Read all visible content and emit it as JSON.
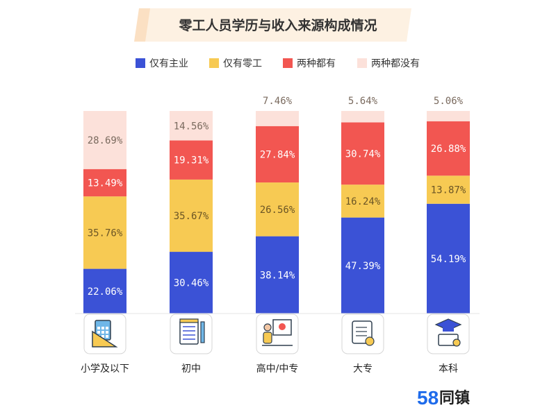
{
  "chart_data": {
    "type": "bar",
    "stacked": true,
    "normalized": true,
    "title": "零工人员学历与收入来源构成情况",
    "categories": [
      "小学及以下",
      "初中",
      "高中/中专",
      "大专",
      "本科"
    ],
    "series": [
      {
        "name": "仅有主业",
        "color": "#3B52D6",
        "values": [
          22.06,
          30.46,
          38.14,
          47.39,
          54.19
        ]
      },
      {
        "name": "仅有零工",
        "color": "#F7CA53",
        "values": [
          35.76,
          35.67,
          26.56,
          16.24,
          13.87
        ]
      },
      {
        "name": "两种都有",
        "color": "#F25651",
        "values": [
          13.49,
          19.31,
          27.84,
          30.74,
          26.88
        ]
      },
      {
        "name": "两种都没有",
        "color": "#FCE1DA",
        "values": [
          28.69,
          14.56,
          7.46,
          5.64,
          5.06
        ]
      }
    ],
    "value_format": "{v}%",
    "legend_position": "top",
    "grid": false,
    "icons": [
      "calculator-ruler-icon",
      "notepad-pen-icon",
      "presentation-board-icon",
      "diploma-scroll-icon",
      "graduation-cap-certificate-icon"
    ]
  },
  "brand": {
    "number": "58",
    "text": "同镇",
    "number_color": "#1E6BEB"
  }
}
